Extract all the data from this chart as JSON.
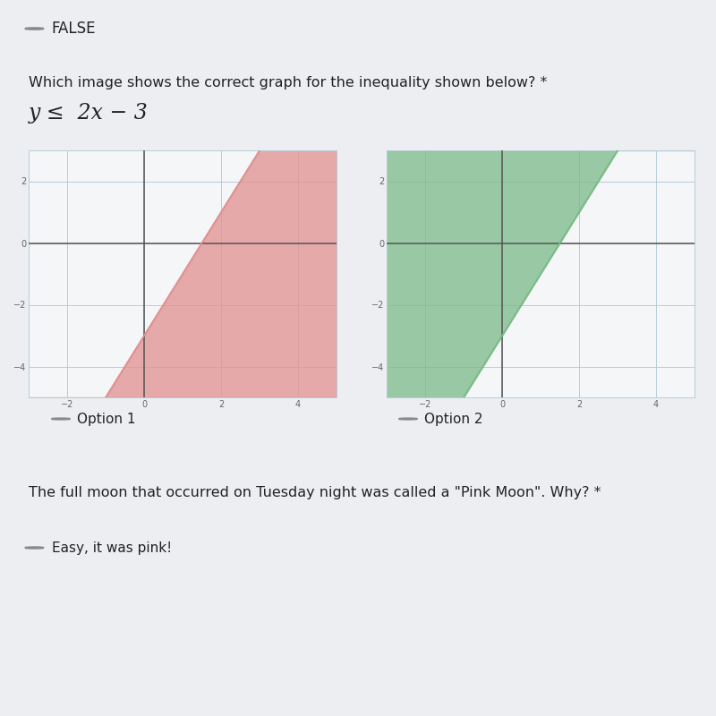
{
  "title_text": "Which image shows the correct graph for the inequality shown below? *",
  "inequality_text": "y ≤  2x − 3",
  "option1_label": "Option 1",
  "option2_label": "Option 2",
  "false_label": "FALSE",
  "moon_text": "The full moon that occurred on Tuesday night was called a \"Pink Moon\". Why? *",
  "easy_label": "Easy, it was pink!",
  "xlim": [
    -3,
    5
  ],
  "ylim": [
    -5,
    3
  ],
  "xticks": [
    -2,
    0,
    2,
    4
  ],
  "yticks": [
    -4,
    -2,
    0,
    2
  ],
  "grid_color": "#b8cdd8",
  "axis_color": "#555555",
  "bg_color": "#eceef2",
  "graph_bg": "#f5f6f8",
  "option1_fill_color": "#e09090",
  "option2_fill_color": "#7aba88",
  "text_color": "#222222",
  "subtext_color": "#666666",
  "radio_color": "#888888",
  "sep_color": "#b0b8cc",
  "tick_label_size": 7,
  "graph1_xlim": [
    -3,
    5
  ],
  "graph1_ylim": [
    -5,
    3
  ],
  "graph2_xlim": [
    -3,
    5
  ],
  "graph2_ylim": [
    -5,
    3
  ]
}
